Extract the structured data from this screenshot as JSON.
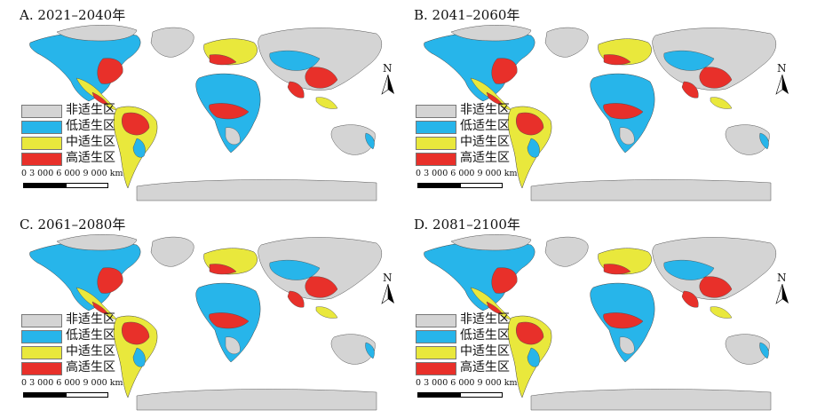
{
  "figure": {
    "panels": [
      {
        "title": "A. 2021–2040年"
      },
      {
        "title": "B. 2041–2060年"
      },
      {
        "title": "C. 2061–2080年"
      },
      {
        "title": "D. 2081–2100年"
      }
    ],
    "legend": {
      "items": [
        {
          "label": "非适生区",
          "color": "#d4d4d4"
        },
        {
          "label": "低适生区",
          "color": "#27b5ea"
        },
        {
          "label": "中适生区",
          "color": "#e9e83c"
        },
        {
          "label": "高适生区",
          "color": "#e8302a"
        }
      ]
    },
    "scale_bar": {
      "label": "0    3 000 6 000 9 000 km"
    },
    "north_arrow": {
      "label": "N"
    }
  }
}
